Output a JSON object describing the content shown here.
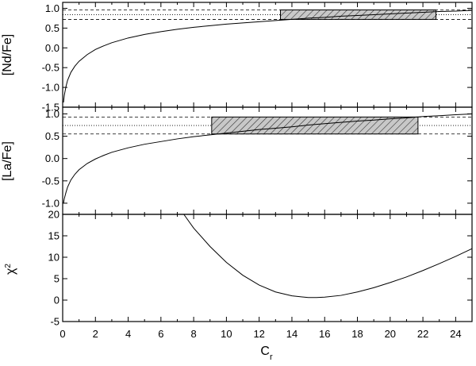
{
  "chart_data": {
    "type": "line",
    "xlabel": "C",
    "xlabel_sub": "r",
    "xlim": [
      0,
      25
    ],
    "x_ticks": [
      0,
      2,
      4,
      6,
      8,
      10,
      12,
      14,
      16,
      18,
      20,
      22,
      24
    ],
    "x_tick_labels": [
      "0",
      "2",
      "4",
      "6",
      "8",
      "10",
      "12",
      "14",
      "16",
      "18",
      "20",
      "22",
      "24"
    ],
    "panels": [
      {
        "ylabel": "[Nd/Fe]",
        "ylim": [
          -1.5,
          1.15
        ],
        "y_ticks": [
          -1.5,
          -1.0,
          -0.5,
          0.0,
          0.5,
          1.0
        ],
        "y_tick_labels": [
          "-1.5",
          "-1.0",
          "-0.5",
          "0.0",
          "0.5",
          "1.0"
        ],
        "observed_value": 0.84,
        "observed_range": [
          0.72,
          0.96
        ],
        "best_fit_range": [
          13.3,
          22.8
        ],
        "curve": {
          "x": [
            0.05,
            0.1,
            0.2,
            0.3,
            0.5,
            0.75,
            1,
            1.5,
            2,
            2.5,
            3,
            4,
            5,
            6,
            7,
            8,
            9,
            10,
            11,
            12,
            13,
            14,
            15,
            16,
            17,
            18,
            19,
            20,
            21,
            22,
            23,
            24,
            25
          ],
          "y": [
            -1.38,
            -1.2,
            -0.98,
            -0.82,
            -0.62,
            -0.46,
            -0.34,
            -0.17,
            -0.04,
            0.05,
            0.13,
            0.25,
            0.34,
            0.41,
            0.47,
            0.52,
            0.56,
            0.6,
            0.63,
            0.66,
            0.69,
            0.72,
            0.75,
            0.77,
            0.8,
            0.82,
            0.84,
            0.86,
            0.88,
            0.9,
            0.92,
            0.93,
            0.95
          ]
        }
      },
      {
        "ylabel": "[La/Fe]",
        "ylim": [
          -1.25,
          1.15
        ],
        "y_ticks": [
          -1.0,
          -0.5,
          0.0,
          0.5,
          1.0
        ],
        "y_tick_labels": [
          "-1.0",
          "-0.5",
          "0.0",
          "0.5",
          "1.0"
        ],
        "observed_value": 0.74,
        "observed_range": [
          0.55,
          0.93
        ],
        "best_fit_range": [
          9.1,
          21.7
        ],
        "curve": {
          "x": [
            0.05,
            0.1,
            0.2,
            0.3,
            0.5,
            0.75,
            1,
            1.5,
            2,
            2.5,
            3,
            4,
            5,
            6,
            7,
            8,
            9,
            10,
            11,
            12,
            13,
            14,
            15,
            16,
            17,
            18,
            19,
            20,
            21,
            22,
            23,
            24,
            25
          ],
          "y": [
            -1.0,
            -0.9,
            -0.76,
            -0.64,
            -0.48,
            -0.35,
            -0.25,
            -0.11,
            -0.01,
            0.07,
            0.14,
            0.24,
            0.32,
            0.38,
            0.44,
            0.49,
            0.53,
            0.57,
            0.61,
            0.65,
            0.68,
            0.71,
            0.75,
            0.78,
            0.81,
            0.84,
            0.86,
            0.89,
            0.91,
            0.94,
            0.96,
            0.98,
            1.0
          ]
        }
      },
      {
        "ylabel": "χ",
        "ylabel_sup": "2",
        "ylim": [
          -5,
          20
        ],
        "y_ticks": [
          -5,
          0,
          5,
          10,
          15,
          20
        ],
        "y_tick_labels": [
          "-5",
          "0",
          "5",
          "10",
          "15",
          "20"
        ],
        "curve": {
          "x": [
            7.4,
            8,
            9,
            10,
            11,
            12,
            13,
            14,
            15,
            15.5,
            16,
            17,
            18,
            19,
            20,
            21,
            22,
            23,
            24,
            25
          ],
          "y": [
            20.0,
            16.8,
            12.5,
            8.8,
            5.8,
            3.5,
            1.9,
            1.0,
            0.6,
            0.6,
            0.7,
            1.1,
            1.9,
            2.9,
            4.1,
            5.4,
            6.9,
            8.5,
            10.2,
            12.0
          ]
        }
      }
    ]
  }
}
